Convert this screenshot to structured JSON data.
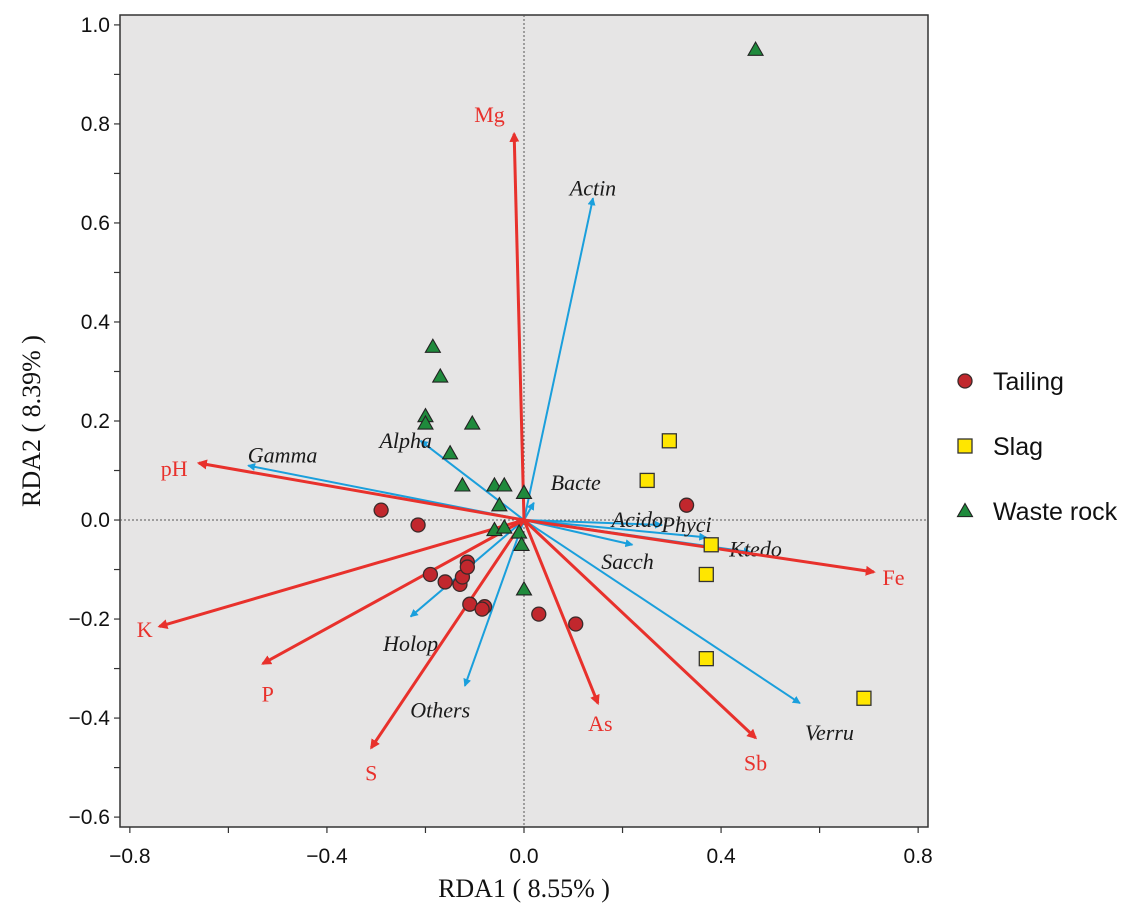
{
  "chart_data": {
    "type": "scatter",
    "xlabel": "RDA1 ( 8.55% )",
    "ylabel": "RDA2 ( 8.39% )",
    "xlim": [
      -0.82,
      0.82
    ],
    "ylim": [
      -0.62,
      1.02
    ],
    "xticks": [
      -0.8,
      -0.4,
      0.0,
      0.4,
      0.8
    ],
    "xtick_labels": [
      "−0.8",
      "−0.4",
      "0.0",
      "0.4",
      "0.8"
    ],
    "yticks": [
      -0.6,
      -0.4,
      -0.2,
      0.0,
      0.2,
      0.4,
      0.6,
      0.8,
      1.0
    ],
    "ytick_labels": [
      "−0.6",
      "−0.4",
      "−0.2",
      "0.0",
      "0.2",
      "0.4",
      "0.6",
      "0.8",
      "1.0"
    ],
    "grid": false,
    "legend_position": "right",
    "colors": {
      "panel": "#e6e5e5",
      "env_arrow": "#e8312c",
      "species_arrow": "#1a9fdc",
      "tailing": "#c1272d",
      "slag": "#ffe600",
      "waste_rock": "#1f8a3c"
    },
    "env_vectors": [
      {
        "label": "Mg",
        "x": -0.02,
        "y": 0.78,
        "lx": -0.07,
        "ly": 0.82
      },
      {
        "label": "pH",
        "x": -0.66,
        "y": 0.115,
        "lx": -0.71,
        "ly": 0.105
      },
      {
        "label": "K",
        "x": -0.74,
        "y": -0.215,
        "lx": -0.77,
        "ly": -0.22
      },
      {
        "label": "P",
        "x": -0.53,
        "y": -0.29,
        "lx": -0.52,
        "ly": -0.35
      },
      {
        "label": "S",
        "x": -0.31,
        "y": -0.46,
        "lx": -0.31,
        "ly": -0.51
      },
      {
        "label": "As",
        "x": 0.15,
        "y": -0.37,
        "lx": 0.155,
        "ly": -0.41
      },
      {
        "label": "Sb",
        "x": 0.47,
        "y": -0.44,
        "lx": 0.47,
        "ly": -0.49
      },
      {
        "label": "Fe",
        "x": 0.71,
        "y": -0.105,
        "lx": 0.75,
        "ly": -0.115
      }
    ],
    "species_vectors": [
      {
        "label": "Actin",
        "x": 0.14,
        "y": 0.65,
        "lx": 0.14,
        "ly": 0.67
      },
      {
        "label": "Gamma",
        "x": -0.56,
        "y": 0.11,
        "lx": -0.49,
        "ly": 0.13
      },
      {
        "label": "Alpha",
        "x": -0.21,
        "y": 0.16,
        "lx": -0.24,
        "ly": 0.16
      },
      {
        "label": "Bacte",
        "x": 0.02,
        "y": 0.035,
        "lx": 0.105,
        "ly": 0.075
      },
      {
        "label": "Acido",
        "x": 0.28,
        "y": -0.01,
        "lx": 0.23,
        "ly": 0.0
      },
      {
        "label": "Phyci",
        "x": 0.37,
        "y": -0.035,
        "lx": 0.33,
        "ly": -0.01
      },
      {
        "label": "Ktedo",
        "x": 0.46,
        "y": -0.065,
        "lx": 0.47,
        "ly": -0.06
      },
      {
        "label": "Sacch",
        "x": 0.22,
        "y": -0.05,
        "lx": 0.21,
        "ly": -0.085
      },
      {
        "label": "Holop",
        "x": -0.23,
        "y": -0.195,
        "lx": -0.23,
        "ly": -0.25
      },
      {
        "label": "Others",
        "x": -0.12,
        "y": -0.335,
        "lx": -0.17,
        "ly": -0.385
      },
      {
        "label": "Verru",
        "x": 0.56,
        "y": -0.37,
        "lx": 0.62,
        "ly": -0.43
      }
    ],
    "series": [
      {
        "name": "Tailing",
        "marker": "circle",
        "x": [
          -0.29,
          -0.215,
          -0.19,
          -0.16,
          -0.13,
          -0.125,
          -0.115,
          -0.115,
          -0.11,
          -0.08,
          -0.085,
          0.03,
          0.105,
          0.33
        ],
        "y": [
          0.02,
          -0.01,
          -0.11,
          -0.125,
          -0.13,
          -0.115,
          -0.085,
          -0.095,
          -0.17,
          -0.175,
          -0.18,
          -0.19,
          -0.21,
          0.03
        ]
      },
      {
        "name": "Slag",
        "marker": "square",
        "x": [
          0.25,
          0.295,
          0.38,
          0.37,
          0.37,
          0.69
        ],
        "y": [
          0.08,
          0.16,
          -0.05,
          -0.11,
          -0.28,
          -0.36
        ]
      },
      {
        "name": "Waste rock",
        "marker": "triangle",
        "x": [
          0.47,
          -0.185,
          -0.17,
          -0.105,
          -0.2,
          -0.2,
          -0.15,
          -0.125,
          -0.06,
          -0.04,
          0.0,
          -0.05,
          -0.06,
          -0.04,
          -0.01,
          -0.005,
          0.0
        ],
        "y": [
          0.95,
          0.35,
          0.29,
          0.195,
          0.21,
          0.195,
          0.135,
          0.07,
          0.07,
          0.07,
          0.055,
          0.03,
          -0.02,
          -0.015,
          -0.025,
          -0.05,
          -0.14
        ]
      }
    ],
    "legend": [
      "Tailing",
      "Slag",
      "Waste rock"
    ]
  }
}
